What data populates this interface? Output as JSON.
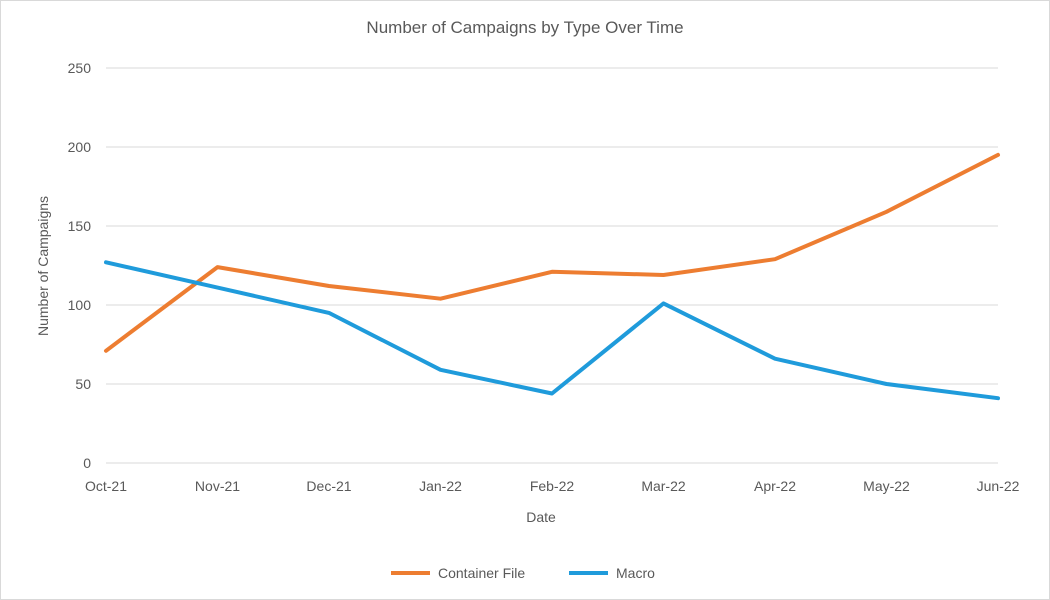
{
  "chart_data": {
    "type": "line",
    "title": "Number of Campaigns by Type Over Time",
    "xlabel": "Date",
    "ylabel": "Number of Campaigns",
    "categories": [
      "Oct-21",
      "Nov-21",
      "Dec-21",
      "Jan-22",
      "Feb-22",
      "Mar-22",
      "Apr-22",
      "May-22",
      "Jun-22"
    ],
    "ylim": [
      0,
      250
    ],
    "yticks": [
      0,
      50,
      100,
      150,
      200,
      250
    ],
    "grid": true,
    "legend_position": "bottom",
    "series": [
      {
        "name": "Container File",
        "color": "#ED7D31",
        "values": [
          71,
          124,
          112,
          104,
          121,
          119,
          129,
          159,
          195
        ]
      },
      {
        "name": "Macro",
        "color": "#1F9BDB",
        "values": [
          127,
          111,
          95,
          59,
          44,
          101,
          66,
          50,
          41
        ]
      }
    ]
  }
}
